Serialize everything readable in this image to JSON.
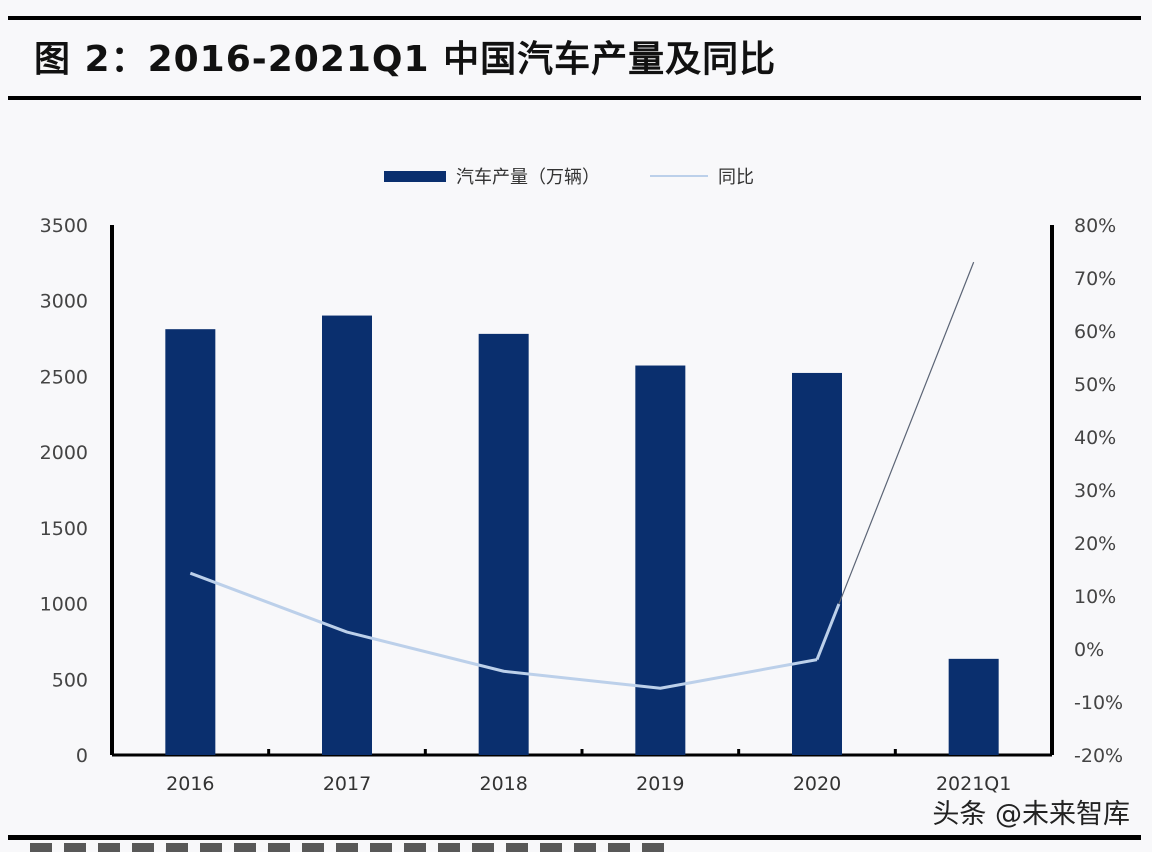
{
  "title": "图 2：2016-2021Q1 中国汽车产量及同比",
  "legend": {
    "bar_label": "汽车产量（万辆）",
    "line_label": "同比"
  },
  "watermark": "头条 @未来智库",
  "colors": {
    "bar": "#0a2f6e",
    "line": "#bcd0ea",
    "line_extension": "#5b6475",
    "axis": "#000000",
    "background": "#f8f8fa"
  },
  "chart_data": {
    "type": "bar+line",
    "title": "2016-2021Q1 中国汽车产量及同比",
    "categories": [
      "2016",
      "2017",
      "2018",
      "2019",
      "2020",
      "2021Q1"
    ],
    "series": [
      {
        "name": "汽车产量（万辆）",
        "type": "bar",
        "axis": "left",
        "values": [
          2812,
          2902,
          2781,
          2572,
          2523,
          635
        ]
      },
      {
        "name": "同比",
        "type": "line",
        "axis": "right",
        "values": [
          14.3,
          3.2,
          -4.2,
          -7.4,
          -2.0,
          73.0
        ],
        "unit": "%"
      }
    ],
    "left_axis": {
      "ticks": [
        "0",
        "500",
        "1000",
        "1500",
        "2000",
        "2500",
        "3000",
        "3500"
      ],
      "range": [
        0,
        3500
      ]
    },
    "right_axis": {
      "ticks": [
        "-20%",
        "-10%",
        "0%",
        "10%",
        "20%",
        "30%",
        "40%",
        "50%",
        "60%",
        "70%",
        "80%"
      ],
      "range": [
        -20,
        80
      ]
    },
    "xlabel": "",
    "ylabel": "",
    "grid": false,
    "legend_position": "top"
  }
}
